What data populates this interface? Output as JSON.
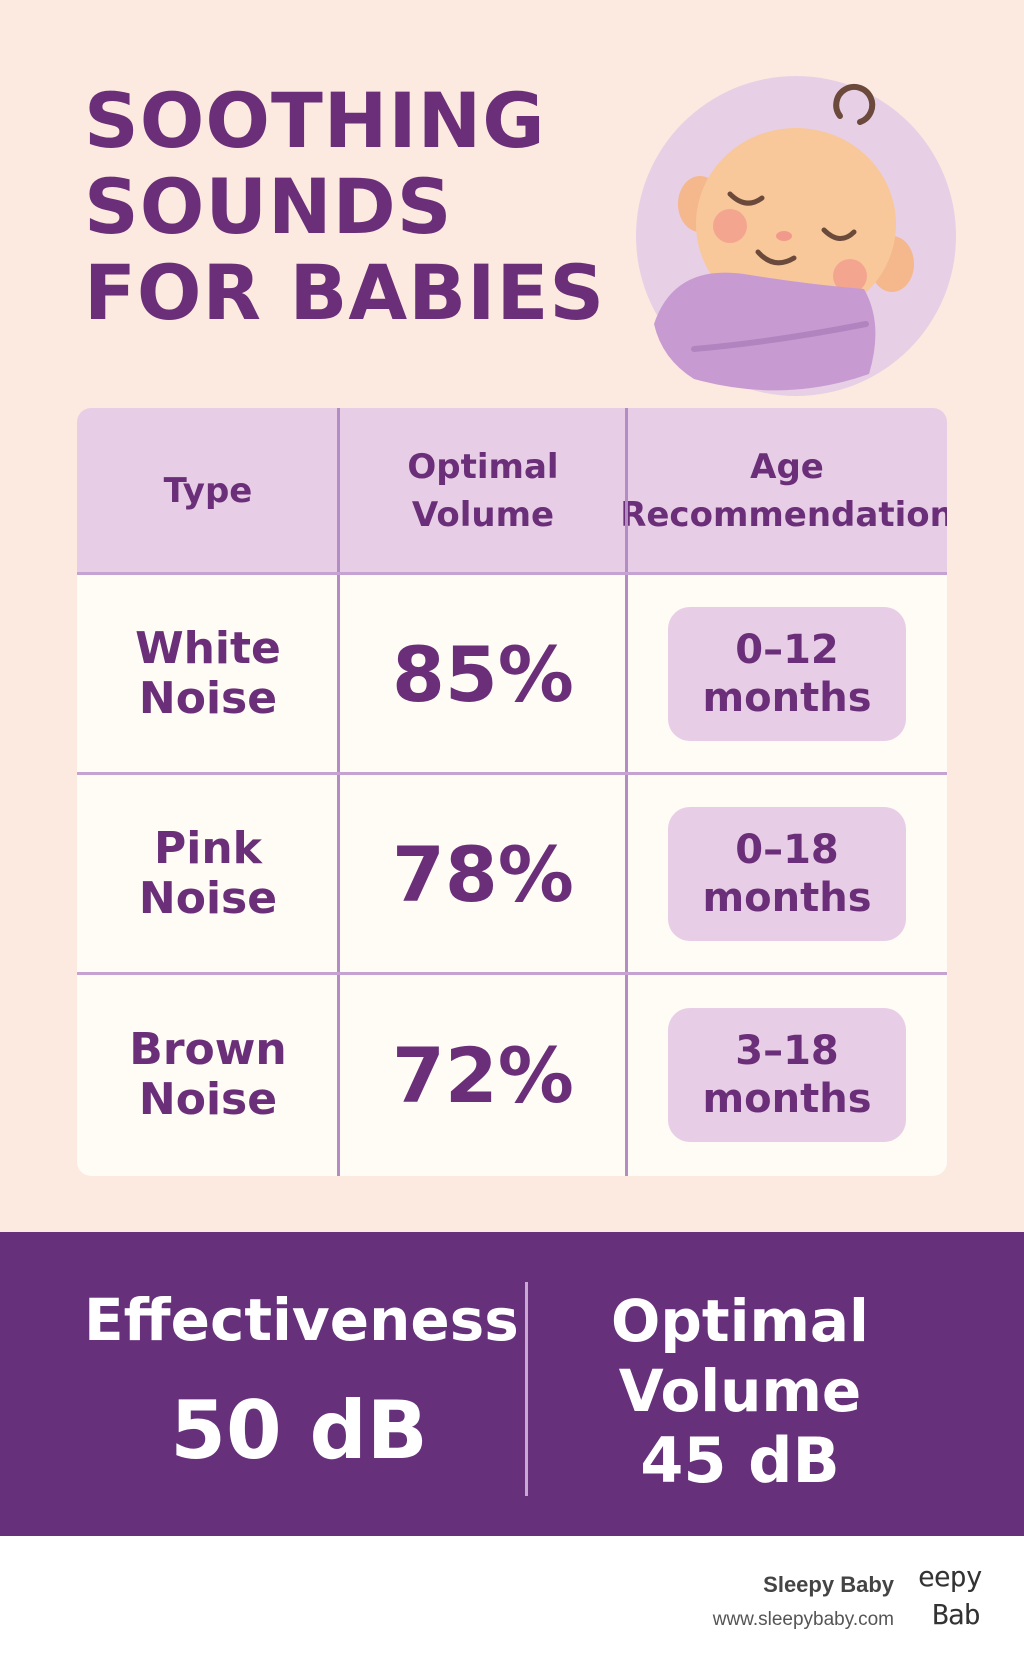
{
  "title_lines": [
    "SOOTHING",
    "SOUNDS",
    "FOR BABIES"
  ],
  "table": {
    "headers": [
      "Type",
      "Optimal\nVolume",
      "Age\nRecommendation"
    ],
    "rows": [
      {
        "type": "White\nNoise",
        "volume": "85%",
        "age": "0–12\nmonths"
      },
      {
        "type": "Pink\nNoise",
        "volume": "78%",
        "age": "0–18\nmonths"
      },
      {
        "type": "Brown\nNoise",
        "volume": "72%",
        "age": "3–18\nmonths"
      }
    ]
  },
  "footer": {
    "effectiveness_label": "Effectiveness",
    "effectiveness_value": "50 dB",
    "optimal_label_1": "Optimal",
    "optimal_label_2": "Volume",
    "optimal_value": "45 dB"
  },
  "brand": {
    "name": "Sleepy Baby",
    "url": "www.sleepybaby.com",
    "logo_fragment_top": "eepy",
    "logo_fragment_bottom": "Bab"
  },
  "colors": {
    "background": "#fce9e0",
    "accent": "#6a2f78",
    "lavender": "#e8cde6",
    "band": "#66317a"
  }
}
